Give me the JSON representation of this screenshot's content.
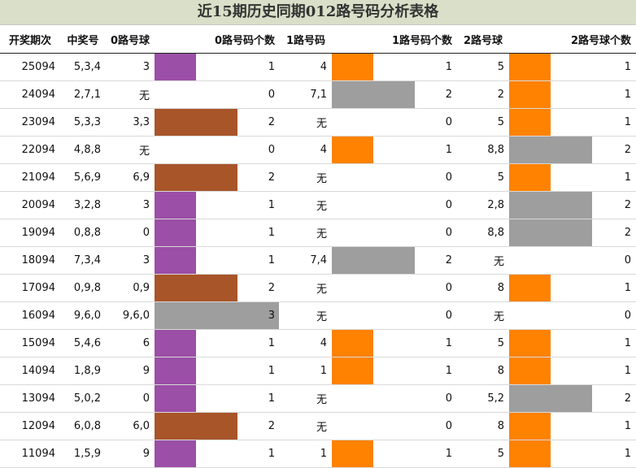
{
  "title": "近15期历史同期012路号码分析表格",
  "headers": [
    "开奖期次",
    "中奖号",
    "0路号球",
    "0路号码个数",
    "1路号码",
    "1路号码个数",
    "2路号球",
    "2路号球个数"
  ],
  "colors": {
    "0": "#ffffff",
    "1": "#9b4fa6",
    "2": "#a8552a",
    "3": "#9e9e9e"
  },
  "colors1": {
    "0": "#ffffff",
    "1": "#ff8200",
    "2": "#9e9e9e"
  },
  "colors2": {
    "0": "#ffffff",
    "1": "#ff8200",
    "2": "#9e9e9e"
  },
  "rows": [
    {
      "period": "25094",
      "number": "5,3,4",
      "r0": "3",
      "c0": 1,
      "r1": "4",
      "c1": 1,
      "r2": "5",
      "c2": 1
    },
    {
      "period": "24094",
      "number": "2,7,1",
      "r0": "无",
      "c0": 0,
      "r1": "7,1",
      "c1": 2,
      "r2": "2",
      "c2": 1
    },
    {
      "period": "23094",
      "number": "5,3,3",
      "r0": "3,3",
      "c0": 2,
      "r1": "无",
      "c1": 0,
      "r2": "5",
      "c2": 1
    },
    {
      "period": "22094",
      "number": "4,8,8",
      "r0": "无",
      "c0": 0,
      "r1": "4",
      "c1": 1,
      "r2": "8,8",
      "c2": 2
    },
    {
      "period": "21094",
      "number": "5,6,9",
      "r0": "6,9",
      "c0": 2,
      "r1": "无",
      "c1": 0,
      "r2": "5",
      "c2": 1
    },
    {
      "period": "20094",
      "number": "3,2,8",
      "r0": "3",
      "c0": 1,
      "r1": "无",
      "c1": 0,
      "r2": "2,8",
      "c2": 2
    },
    {
      "period": "19094",
      "number": "0,8,8",
      "r0": "0",
      "c0": 1,
      "r1": "无",
      "c1": 0,
      "r2": "8,8",
      "c2": 2
    },
    {
      "period": "18094",
      "number": "7,3,4",
      "r0": "3",
      "c0": 1,
      "r1": "7,4",
      "c1": 2,
      "r2": "无",
      "c2": 0
    },
    {
      "period": "17094",
      "number": "0,9,8",
      "r0": "0,9",
      "c0": 2,
      "r1": "无",
      "c1": 0,
      "r2": "8",
      "c2": 1
    },
    {
      "period": "16094",
      "number": "9,6,0",
      "r0": "9,6,0",
      "c0": 3,
      "r1": "无",
      "c1": 0,
      "r2": "无",
      "c2": 0
    },
    {
      "period": "15094",
      "number": "5,4,6",
      "r0": "6",
      "c0": 1,
      "r1": "4",
      "c1": 1,
      "r2": "5",
      "c2": 1
    },
    {
      "period": "14094",
      "number": "1,8,9",
      "r0": "9",
      "c0": 1,
      "r1": "1",
      "c1": 1,
      "r2": "8",
      "c2": 1
    },
    {
      "period": "13094",
      "number": "5,0,2",
      "r0": "0",
      "c0": 1,
      "r1": "无",
      "c1": 0,
      "r2": "5,2",
      "c2": 2
    },
    {
      "period": "12094",
      "number": "6,0,8",
      "r0": "6,0",
      "c0": 2,
      "r1": "无",
      "c1": 0,
      "r2": "8",
      "c2": 1
    },
    {
      "period": "11094",
      "number": "1,5,9",
      "r0": "9",
      "c0": 1,
      "r1": "1",
      "c1": 1,
      "r2": "5",
      "c2": 1
    }
  ]
}
